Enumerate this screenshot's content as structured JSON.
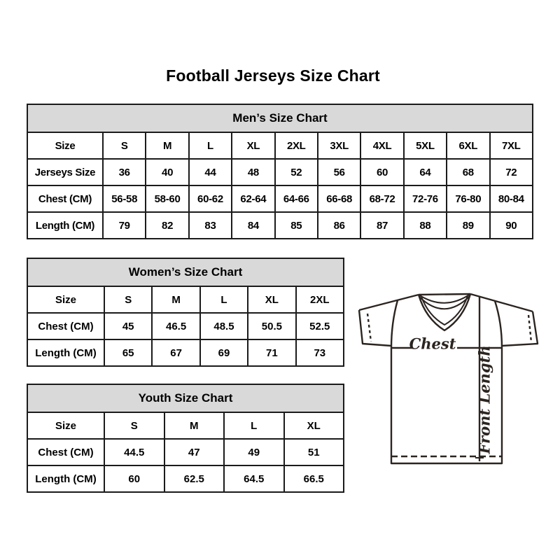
{
  "page": {
    "title": "Football Jerseys Size Chart"
  },
  "colors": {
    "header_bg": "#d9d9d9",
    "table_border": "#1b1b1b",
    "jersey_line": "#2b2420",
    "text": "#000000",
    "background": "#ffffff"
  },
  "tables": [
    {
      "id": "mens",
      "title": "Men’s Size Chart",
      "rows": [
        [
          "Size",
          "S",
          "M",
          "L",
          "XL",
          "2XL",
          "3XL",
          "4XL",
          "5XL",
          "6XL",
          "7XL"
        ],
        [
          "Jerseys Size",
          "36",
          "40",
          "44",
          "48",
          "52",
          "56",
          "60",
          "64",
          "68",
          "72"
        ],
        [
          "Chest (CM)",
          "56-58",
          "58-60",
          "60-62",
          "62-64",
          "64-66",
          "66-68",
          "68-72",
          "72-76",
          "76-80",
          "80-84"
        ],
        [
          "Length (CM)",
          "79",
          "82",
          "83",
          "84",
          "85",
          "86",
          "87",
          "88",
          "89",
          "90"
        ]
      ]
    },
    {
      "id": "womens",
      "title": "Women’s Size Chart",
      "rows": [
        [
          "Size",
          "S",
          "M",
          "L",
          "XL",
          "2XL"
        ],
        [
          "Chest (CM)",
          "45",
          "46.5",
          "48.5",
          "50.5",
          "52.5"
        ],
        [
          "Length (CM)",
          "65",
          "67",
          "69",
          "71",
          "73"
        ]
      ]
    },
    {
      "id": "youth",
      "title": "Youth Size Chart",
      "rows": [
        [
          "Size",
          "S",
          "M",
          "L",
          "XL"
        ],
        [
          "Chest (CM)",
          "44.5",
          "47",
          "49",
          "51"
        ],
        [
          "Length (CM)",
          "60",
          "62.5",
          "64.5",
          "66.5"
        ]
      ]
    }
  ],
  "diagram": {
    "chest_label": "Chest",
    "front_length_label": "Front Length"
  }
}
